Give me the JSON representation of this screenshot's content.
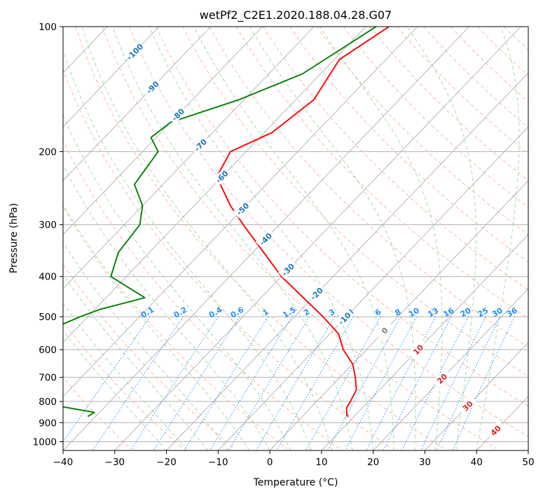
{
  "chart_data": {
    "type": "line",
    "subtype": "skew-t log-p diagram",
    "title": "wetPf2_C2E1.2020.188.04.28.G07",
    "xlabel": "Temperature (°C)",
    "ylabel": "Pressure (hPa)",
    "xlim": [
      -40,
      50
    ],
    "ylim": [
      1050,
      100
    ],
    "y_scale": "log",
    "grid": true,
    "x_ticks": [
      -40,
      -30,
      -20,
      -10,
      0,
      10,
      20,
      30,
      40,
      50
    ],
    "y_ticks": [
      100,
      200,
      300,
      400,
      500,
      600,
      700,
      800,
      900,
      1000
    ],
    "series": [
      {
        "id": "temperature",
        "color": "#ff0000",
        "points": [
          [
            100,
            -55.5
          ],
          [
            120,
            -59.0
          ],
          [
            150,
            -56.5
          ],
          [
            180,
            -58.5
          ],
          [
            200,
            -63.0
          ],
          [
            230,
            -61.0
          ],
          [
            270,
            -53.0
          ],
          [
            300,
            -47.0
          ],
          [
            400,
            -30.0
          ],
          [
            500,
            -14.5
          ],
          [
            550,
            -8.3
          ],
          [
            600,
            -4.5
          ],
          [
            650,
            0.0
          ],
          [
            700,
            3.0
          ],
          [
            750,
            5.5
          ],
          [
            800,
            6.5
          ],
          [
            830,
            7.0
          ],
          [
            860,
            8.2
          ],
          [
            870,
            8.9
          ]
        ]
      },
      {
        "id": "dewpoint",
        "color": "#008000",
        "points": [
          [
            100,
            -58.0
          ],
          [
            130,
            -63.5
          ],
          [
            150,
            -71.0
          ],
          [
            170,
            -80.0
          ],
          [
            185,
            -81.0
          ],
          [
            200,
            -77.0
          ],
          [
            240,
            -75.5
          ],
          [
            270,
            -70.0
          ],
          [
            300,
            -67.0
          ],
          [
            350,
            -66.0
          ],
          [
            400,
            -63.0
          ],
          [
            450,
            -52.5
          ],
          [
            480,
            -59.0
          ],
          [
            500,
            -61.5
          ],
          [
            550,
            -66.0
          ],
          [
            570,
            -85.0
          ],
          [
            600,
            -72.0
          ],
          [
            630,
            -76.0
          ],
          [
            650,
            -58.0
          ],
          [
            700,
            -85.0
          ],
          [
            750,
            -57.0
          ],
          [
            780,
            -62.0
          ],
          [
            800,
            -55.0
          ],
          [
            850,
            -41.0
          ],
          [
            870,
            -41.5
          ]
        ]
      }
    ],
    "reference_lines": {
      "isotherms": "solid grey, skewed",
      "dry_adiabats": "dashed salmon",
      "moist_adiabats": "dashed green",
      "mixing_ratio": "dotted blue"
    },
    "isotherm_labels": [
      "-100",
      "-90",
      "-80",
      "-70",
      "-60",
      "-50",
      "-40",
      "-30",
      "-20",
      "-10",
      "0",
      "10",
      "20",
      "30",
      "40"
    ],
    "mixing_ratio_labels": [
      "0.1",
      "0.2",
      "0.4",
      "0.6",
      "1",
      "1.5",
      "2",
      "3",
      "4",
      "6",
      "8",
      "10",
      "13",
      "16",
      "20",
      "25",
      "30",
      "36"
    ],
    "mixing_ratio_values": [
      0.1,
      0.2,
      0.4,
      0.6,
      1,
      1.5,
      2,
      3,
      4,
      6,
      8,
      10,
      13,
      16,
      20,
      25,
      30,
      36
    ],
    "colors": {
      "isotherm": "#b0b0b0",
      "isotherm_label_neg": "#1f77b4",
      "isotherm_label_zero": "#808080",
      "isotherm_label_pos": "#d62728",
      "dry_adiabat": "#ffb6a0",
      "moist_adiabat": "#a8d8a8",
      "mixing_ratio": "#1e90ff",
      "grid": "#b0b0b0"
    }
  }
}
